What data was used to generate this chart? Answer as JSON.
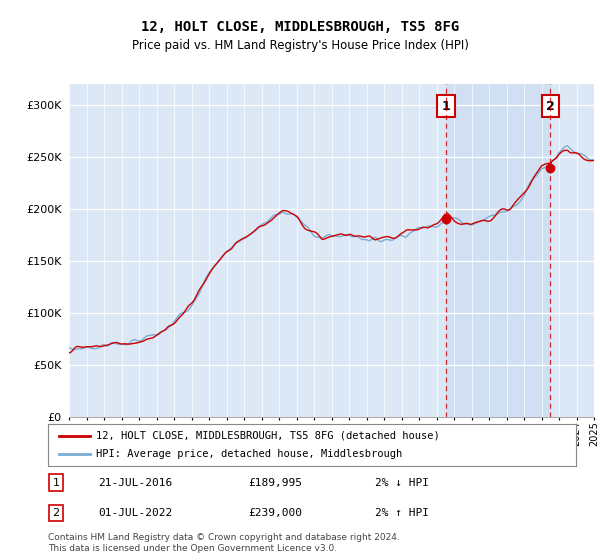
{
  "title": "12, HOLT CLOSE, MIDDLESBROUGH, TS5 8FG",
  "subtitle": "Price paid vs. HM Land Registry's House Price Index (HPI)",
  "background_color": "#dce8f5",
  "plot_bg_color": "#dce8f5",
  "ylim": [
    0,
    320000
  ],
  "yticks": [
    0,
    50000,
    100000,
    150000,
    200000,
    250000,
    300000
  ],
  "ytick_labels": [
    "£0",
    "£50K",
    "£100K",
    "£150K",
    "£200K",
    "£250K",
    "£300K"
  ],
  "hpi_color": "#7aadd4",
  "sale_color": "#cc0000",
  "dashed_color": "#cc0000",
  "marker1_x": 2016.55,
  "marker1_y": 189995,
  "marker2_x": 2022.5,
  "marker2_y": 239000,
  "legend_sale_label": "12, HOLT CLOSE, MIDDLESBROUGH, TS5 8FG (detached house)",
  "legend_hpi_label": "HPI: Average price, detached house, Middlesbrough",
  "marker1_date": "21-JUL-2016",
  "marker1_price": "£189,995",
  "marker1_hpi": "2% ↓ HPI",
  "marker2_date": "01-JUL-2022",
  "marker2_price": "£239,000",
  "marker2_hpi": "2% ↑ HPI",
  "footnote": "Contains HM Land Registry data © Crown copyright and database right 2024.\nThis data is licensed under the Open Government Licence v3.0.",
  "xmin": 1995,
  "xmax": 2025,
  "shade_color": "#c8dcf0"
}
